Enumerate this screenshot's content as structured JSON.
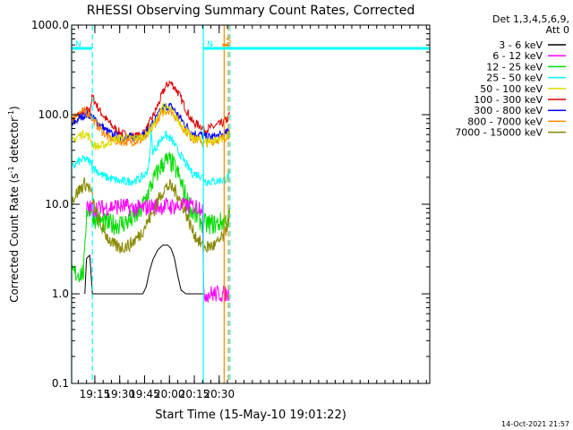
{
  "chart_data": {
    "type": "line",
    "title": "RHESSI Observing Summary Count Rates, Corrected",
    "xlabel": "Start Time (15-May-10 19:01:22)",
    "ylabel": "Corrected Count Rate (s",
    "ylabel_sup1": "-1",
    "ylabel_mid": " detector",
    "ylabel_sup2": "-1",
    "ylabel_end": ")",
    "yscale": "log",
    "ylim": [
      0.1,
      1000
    ],
    "xlim_min": [
      1141,
      1357
    ],
    "y_tick_labels": [
      "0.1",
      "1.0",
      "10.0",
      "100.0",
      "1000.0"
    ],
    "y_tick_values": [
      0.1,
      1,
      10,
      100,
      1000
    ],
    "x_tick_labels": [
      "19:15",
      "19:30",
      "19:45",
      "20:00",
      "20:15",
      "20:30"
    ],
    "x_tick_values_min": [
      1155,
      1170,
      1185,
      1200,
      1215,
      1230
    ],
    "legend_header": [
      "Det 1,3,4,5,6,9,",
      "Att 0"
    ],
    "legend": [
      {
        "label": "3 - 6 keV",
        "color": "#000000"
      },
      {
        "label": "6 - 12 keV",
        "color": "#ff00ff"
      },
      {
        "label": "12 - 25 keV",
        "color": "#00dd00"
      },
      {
        "label": "25 - 50 keV",
        "color": "#00ffff"
      },
      {
        "label": "50 - 100 keV",
        "color": "#dddd00"
      },
      {
        "label": "100 - 300 keV",
        "color": "#dd0000"
      },
      {
        "label": "300 - 800 keV",
        "color": "#0000ff"
      },
      {
        "label": "800 - 7000 keV",
        "color": "#ff8800"
      },
      {
        "label": "7000 - 15000 keV",
        "color": "#888800"
      }
    ],
    "flags": [
      {
        "label": "N",
        "color": "#00ffff",
        "x_start": 1141,
        "x_end": 1153.5,
        "y": 550
      },
      {
        "label": "N",
        "color": "#00ffff",
        "x_start": 1220.5,
        "x_end": 1357,
        "y": 550
      },
      {
        "label": "S",
        "color": "#ff8800",
        "x_start": 1232,
        "x_end": 1236,
        "y": 600
      }
    ],
    "vertical_lines": [
      {
        "x": 1141,
        "color": "#00ffff",
        "style": "solid"
      },
      {
        "x": 1153.5,
        "color": "#00ffff",
        "style": "dashed"
      },
      {
        "x": 1220.5,
        "color": "#00ffff",
        "style": "solid"
      },
      {
        "x": 1233,
        "color": "#ff8800",
        "style": "solid"
      },
      {
        "x": 1235.5,
        "color": "#ff8800",
        "style": "dashed"
      },
      {
        "x": 1236.5,
        "color": "#00ffff",
        "style": "dashed"
      }
    ],
    "series": [
      {
        "name": "100 - 300 keV",
        "color": "#dd0000",
        "x": [
          1141,
          1145,
          1149,
          1152,
          1153.5,
          1155,
          1158,
          1162,
          1166,
          1170,
          1176,
          1182,
          1186,
          1190,
          1194,
          1197,
          1200,
          1202,
          1205,
          1210,
          1214,
          1219,
          1220.5,
          1222,
          1228,
          1233,
          1236,
          1236.5
        ],
        "y": [
          85,
          100,
          110,
          112,
          160,
          140,
          110,
          88,
          73,
          63,
          57,
          58,
          68,
          95,
          140,
          195,
          230,
          215,
          180,
          115,
          82,
          75,
          68,
          68,
          75,
          82,
          95,
          115
        ]
      },
      {
        "name": "300 - 800 keV",
        "color": "#0000ff",
        "x": [
          1141,
          1145,
          1149,
          1152,
          1153.5,
          1155,
          1158,
          1162,
          1166,
          1170,
          1176,
          1182,
          1186,
          1190,
          1194,
          1197,
          1200,
          1202,
          1205,
          1210,
          1214,
          1219,
          1220.5,
          1222,
          1228,
          1233,
          1236,
          1236.5
        ],
        "y": [
          75,
          90,
          100,
          100,
          92,
          88,
          78,
          66,
          59,
          56,
          56,
          57,
          62,
          80,
          105,
          122,
          125,
          118,
          100,
          75,
          62,
          60,
          57,
          56,
          57,
          60,
          66,
          78
        ]
      },
      {
        "name": "800 - 7000 keV",
        "color": "#ff8800",
        "x": [
          1141,
          1145,
          1149,
          1152,
          1153.5,
          1155,
          1158,
          1162,
          1166,
          1170,
          1176,
          1182,
          1186,
          1190,
          1194,
          1197,
          1200,
          1202,
          1205,
          1210,
          1214,
          1219,
          1220.5,
          1222,
          1228,
          1233,
          1236,
          1236.5
        ],
        "y": [
          88,
          105,
          108,
          102,
          90,
          82,
          70,
          58,
          52,
          50,
          50,
          51,
          56,
          72,
          95,
          110,
          112,
          105,
          88,
          65,
          54,
          52,
          46,
          48,
          52,
          55,
          60,
          70
        ]
      },
      {
        "name": "50 - 100 keV",
        "color": "#dddd00",
        "x": [
          1141,
          1145,
          1149,
          1152,
          1153.5,
          1155,
          1158,
          1162,
          1166,
          1170,
          1176,
          1182,
          1186,
          1190,
          1194,
          1196,
          1197,
          1198,
          1200,
          1202,
          1205,
          1210,
          1214,
          1219,
          1220.5,
          1222,
          1228,
          1233,
          1236,
          1236.5
        ],
        "y": [
          48,
          58,
          62,
          56,
          47,
          45,
          44,
          47,
          52,
          55,
          55,
          55,
          60,
          75,
          95,
          140,
          105,
          120,
          115,
          105,
          88,
          65,
          54,
          52,
          50,
          50,
          52,
          55,
          60,
          68
        ]
      },
      {
        "name": "25 - 50 keV",
        "color": "#00ffff",
        "x": [
          1141,
          1145,
          1149,
          1152,
          1153.5,
          1155,
          1158,
          1162,
          1166,
          1170,
          1176,
          1182,
          1186,
          1188,
          1189,
          1190,
          1194,
          1197,
          1200,
          1202,
          1205,
          1210,
          1214,
          1219,
          1220.5,
          1222,
          1228,
          1233,
          1236,
          1236.5
        ],
        "y": [
          25,
          30,
          32,
          30,
          27,
          25,
          22,
          20,
          19,
          18,
          18,
          19,
          22,
          30,
          65,
          38,
          50,
          60,
          55,
          50,
          40,
          28,
          22,
          21,
          20,
          18,
          18,
          19,
          20,
          24
        ]
      },
      {
        "name": "12 - 25 keV",
        "color": "#00dd00",
        "x": [
          1141,
          1148,
          1149,
          1150,
          1152,
          1153.5,
          1155,
          1158,
          1162,
          1166,
          1170,
          1176,
          1182,
          1186,
          1190,
          1194,
          1197,
          1200,
          1202,
          1205,
          1210,
          1214,
          1219,
          1220.5,
          1222,
          1228,
          1233,
          1236,
          1236.5
        ],
        "y": [
          1.7,
          1.7,
          2.8,
          9,
          8.5,
          8,
          7,
          6.5,
          6,
          6,
          6,
          6.5,
          8,
          12,
          18,
          25,
          30,
          30,
          28,
          22,
          12,
          8,
          6.5,
          6,
          6,
          6,
          6.5,
          7,
          8
        ]
      },
      {
        "name": "6 - 12 keV",
        "color": "#ff00ff",
        "x": [
          1150,
          1155,
          1160,
          1166,
          1172,
          1178,
          1184,
          1190,
          1196,
          1202,
          1208,
          1214,
          1220,
          1220.5,
          1228,
          1236
        ],
        "y": [
          9,
          9,
          9,
          9.5,
          9.5,
          9,
          9,
          9.5,
          9.5,
          9.5,
          9.5,
          9.5,
          9.5,
          1,
          1,
          1
        ]
      },
      {
        "name": "7000 - 15000 keV",
        "color": "#888800",
        "x": [
          1141,
          1145,
          1149,
          1152,
          1153.5,
          1155,
          1158,
          1162,
          1166,
          1170,
          1176,
          1182,
          1186,
          1190,
          1194,
          1197,
          1200,
          1202,
          1205,
          1210,
          1214,
          1219,
          1220.5,
          1222,
          1228,
          1233,
          1236,
          1236.5
        ],
        "y": [
          11,
          14,
          17,
          15,
          12,
          9,
          6,
          4.5,
          3.5,
          3.3,
          3.5,
          4.5,
          6,
          8,
          12,
          15,
          16,
          15,
          13,
          8,
          5,
          3.6,
          3.3,
          3.3,
          3.5,
          4.5,
          7,
          9
        ]
      },
      {
        "name": "3 - 6 keV",
        "color": "#000000",
        "x": [
          1149,
          1150,
          1152,
          1153.5,
          1155,
          1158,
          1165,
          1172,
          1178,
          1184,
          1186,
          1188,
          1190,
          1193,
          1196,
          1199,
          1201,
          1203,
          1205,
          1207,
          1210,
          1215,
          1220.5
        ],
        "y": [
          1,
          2.5,
          2.7,
          1,
          1,
          1,
          1,
          1,
          1,
          1,
          1.2,
          1.8,
          2.4,
          3.1,
          3.5,
          3.5,
          3.2,
          2.5,
          1.6,
          1.1,
          1,
          1,
          1
        ]
      }
    ],
    "footer_date": "14-Oct-2021 21:57"
  }
}
